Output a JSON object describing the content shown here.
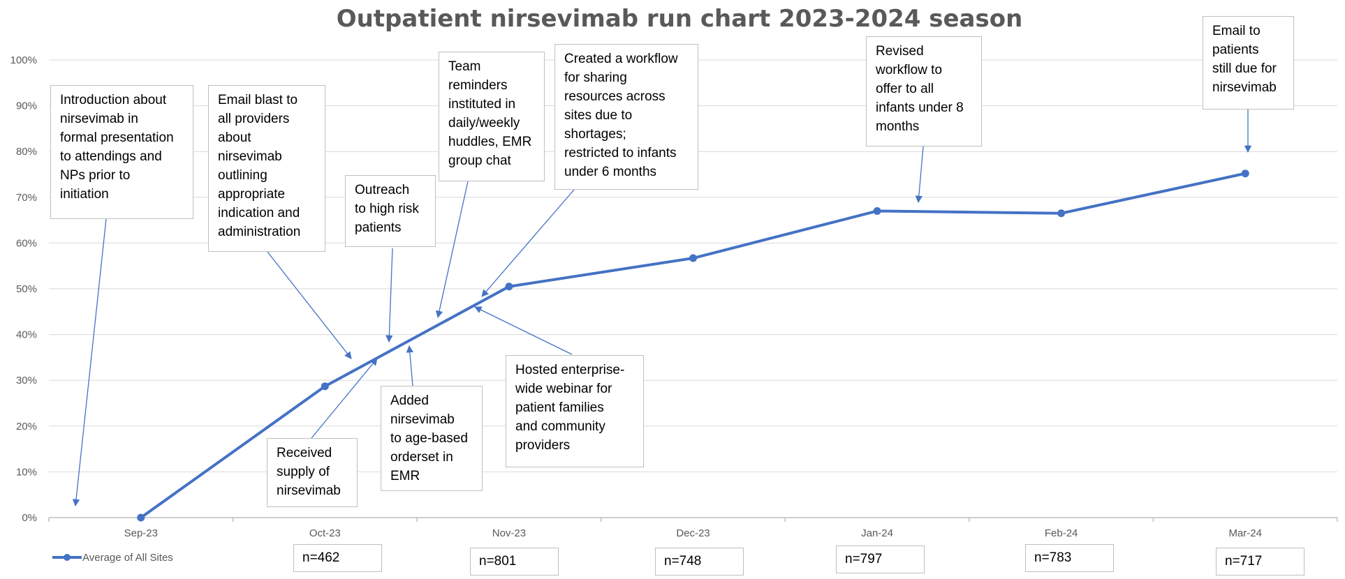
{
  "chart_data": {
    "type": "line",
    "title": "Outpatient nirsevimab run chart 2023-2024 season",
    "categories": [
      "Sep-23",
      "Oct-23",
      "Nov-23",
      "Dec-23",
      "Jan-24",
      "Feb-24",
      "Mar-24"
    ],
    "y_ticks": [
      "0%",
      "10%",
      "20%",
      "30%",
      "40%",
      "50%",
      "60%",
      "70%",
      "80%",
      "90%",
      "100%"
    ],
    "ylim": [
      0,
      100
    ],
    "grid": true,
    "legend_position": "bottom-left",
    "series": [
      {
        "name": "Average of All Sites",
        "color": "#4472c4",
        "values": [
          0,
          28.7,
          50.5,
          56.7,
          67.0,
          66.5,
          75.2
        ]
      }
    ],
    "sample_sizes": [
      "n=462",
      "n=801",
      "n=748",
      "n=797",
      "n=783",
      "n=717"
    ],
    "annotations": [
      {
        "id": "intro",
        "text": "Introduction about\nnirsevimab in\nformal presentation\nto attendings and\nNPs prior to\ninitiation"
      },
      {
        "id": "email_blast",
        "text": "Email blast to\nall providers\nabout\nnirsevimab\noutlining\nappropriate\nindication and\nadministration"
      },
      {
        "id": "outreach",
        "text": "Outreach\nto high risk\npatients"
      },
      {
        "id": "team",
        "text": "Team\nreminders\ninstituted in\ndaily/weekly\nhuddles, EMR\ngroup chat"
      },
      {
        "id": "workflow",
        "text": "Created a workflow\nfor sharing\nresources across\nsites due to\nshortages;\nrestricted to infants\nunder 6 months"
      },
      {
        "id": "revised",
        "text": "Revised\nworkflow to\noffer to all\ninfants under 8\nmonths"
      },
      {
        "id": "email_patients",
        "text": "Email to\npatients\nstill due for\nnirsevimab"
      },
      {
        "id": "supply",
        "text": "Received\nsupply of\nnirsevimab"
      },
      {
        "id": "orderset",
        "text": "Added\nnirsevimab\nto age-based\norderset in\nEMR"
      },
      {
        "id": "webinar",
        "text": "Hosted enterprise-\nwide webinar for\npatient families\nand community\nproviders"
      }
    ]
  }
}
